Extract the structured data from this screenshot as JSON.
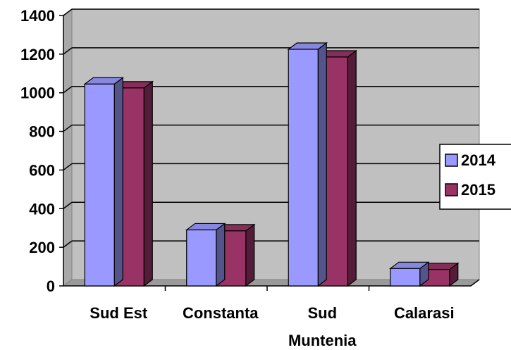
{
  "chart_data": {
    "type": "bar",
    "title": "",
    "xlabel": "",
    "ylabel": "",
    "ylim": [
      0,
      1400
    ],
    "yticks": [
      "0",
      "200",
      "400",
      "600",
      "800",
      "1000",
      "1200",
      "1400"
    ],
    "grid": true,
    "legend_position": "right",
    "categories": [
      [
        "Sud Est"
      ],
      [
        "Constanta"
      ],
      [
        "Sud",
        "Muntenia"
      ],
      [
        "Calarasi"
      ]
    ],
    "series": [
      {
        "name": "2014",
        "values": [
          1045,
          290,
          1225,
          90
        ],
        "color": "#9999ff"
      },
      {
        "name": "2015",
        "values": [
          1025,
          285,
          1185,
          85
        ],
        "color": "#993366"
      }
    ]
  }
}
